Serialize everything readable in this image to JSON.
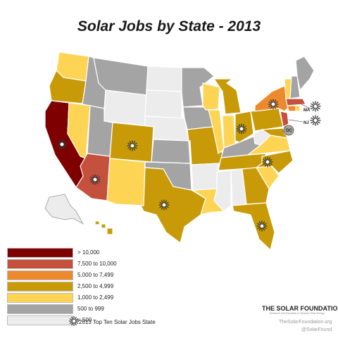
{
  "title": "Solar Jobs by State - 2013",
  "colors": {
    "gt10000": "#7f0000",
    "r7500": "#c3513c",
    "r5000": "#ee8a2e",
    "r2500": "#c89a08",
    "r1000": "#fdd454",
    "r500": "#a4a4a4",
    "lt500": "#ececec"
  },
  "legend": [
    {
      "label": "> 10,000",
      "color": "#7f0000"
    },
    {
      "label": "7,500 to 10,000",
      "color": "#c3513c"
    },
    {
      "label": "5,000 to 7,499",
      "color": "#ee8a2e"
    },
    {
      "label": "2,500 to 4,999",
      "color": "#c89a08"
    },
    {
      "label": "1,000 to 2,499",
      "color": "#fdd454"
    },
    {
      "label": "500 to 999",
      "color": "#a4a4a4"
    },
    {
      "label": "< 500",
      "color": "#ececec"
    }
  ],
  "top10_label": "2013 Top Ten Solar Jobs State",
  "map_labels": {
    "ma": "MA",
    "nj": "NJ",
    "dc": "DC"
  },
  "brand": "THE SOLAR FOUNDATION",
  "brand_tagline": "Research and Education to Advance Solar Energy",
  "website": "TheSolarFoundation.org",
  "twitter": "@SolarFound",
  "icons": {
    "top10": "sun-icon"
  }
}
